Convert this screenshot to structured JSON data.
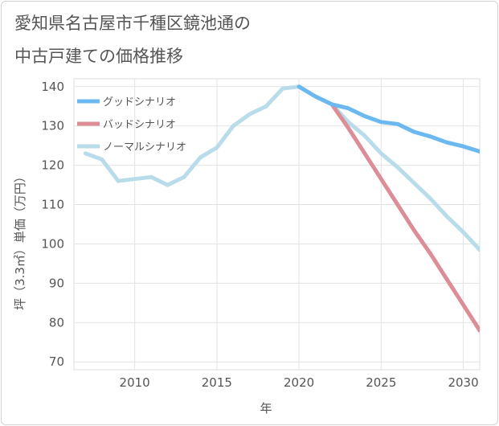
{
  "title": {
    "line1": "愛知県名古屋市千種区鏡池通の",
    "line2": "中古戸建ての価格推移"
  },
  "chart_data": {
    "type": "line",
    "xlabel": "年",
    "ylabel": "坪（3.3㎡）単価（万円）",
    "xlim": [
      2006.3,
      2031
    ],
    "ylim": [
      68,
      142
    ],
    "xticks": [
      2010,
      2015,
      2020,
      2025,
      2030
    ],
    "yticks": [
      70,
      80,
      90,
      100,
      110,
      120,
      130,
      140
    ],
    "grid": true,
    "legend_position": "top-left",
    "series": [
      {
        "name": "グッドシナリオ",
        "color": "#6cb8f0",
        "x": [
          2020,
          2021,
          2022,
          2023,
          2024,
          2025,
          2026,
          2027,
          2028,
          2029,
          2030,
          2031
        ],
        "values": [
          140,
          137.5,
          135.5,
          134.5,
          132.5,
          131,
          130.5,
          128.5,
          127.3,
          125.8,
          124.8,
          123.5
        ]
      },
      {
        "name": "バッドシナリオ",
        "color": "#dc8d96",
        "x": [
          2022,
          2023,
          2024,
          2025,
          2026,
          2027,
          2028,
          2029,
          2030,
          2031
        ],
        "values": [
          135.5,
          129.5,
          123,
          116.5,
          110,
          103.5,
          97.5,
          91,
          84.5,
          78
        ]
      },
      {
        "name": "ノーマルシナリオ",
        "color": "#b9dcea",
        "x": [
          2007,
          2008,
          2009,
          2010,
          2011,
          2012,
          2013,
          2014,
          2015,
          2016,
          2017,
          2018,
          2019,
          2020,
          2021,
          2022,
          2023,
          2024,
          2025,
          2026,
          2027,
          2028,
          2029,
          2030,
          2031
        ],
        "values": [
          123,
          121.5,
          116,
          116.5,
          117,
          115,
          117,
          122,
          124.5,
          130,
          133,
          135,
          139.5,
          140,
          137.5,
          135.5,
          131,
          127.5,
          123,
          119.5,
          115.5,
          111.5,
          107,
          103,
          98.5
        ]
      }
    ]
  }
}
